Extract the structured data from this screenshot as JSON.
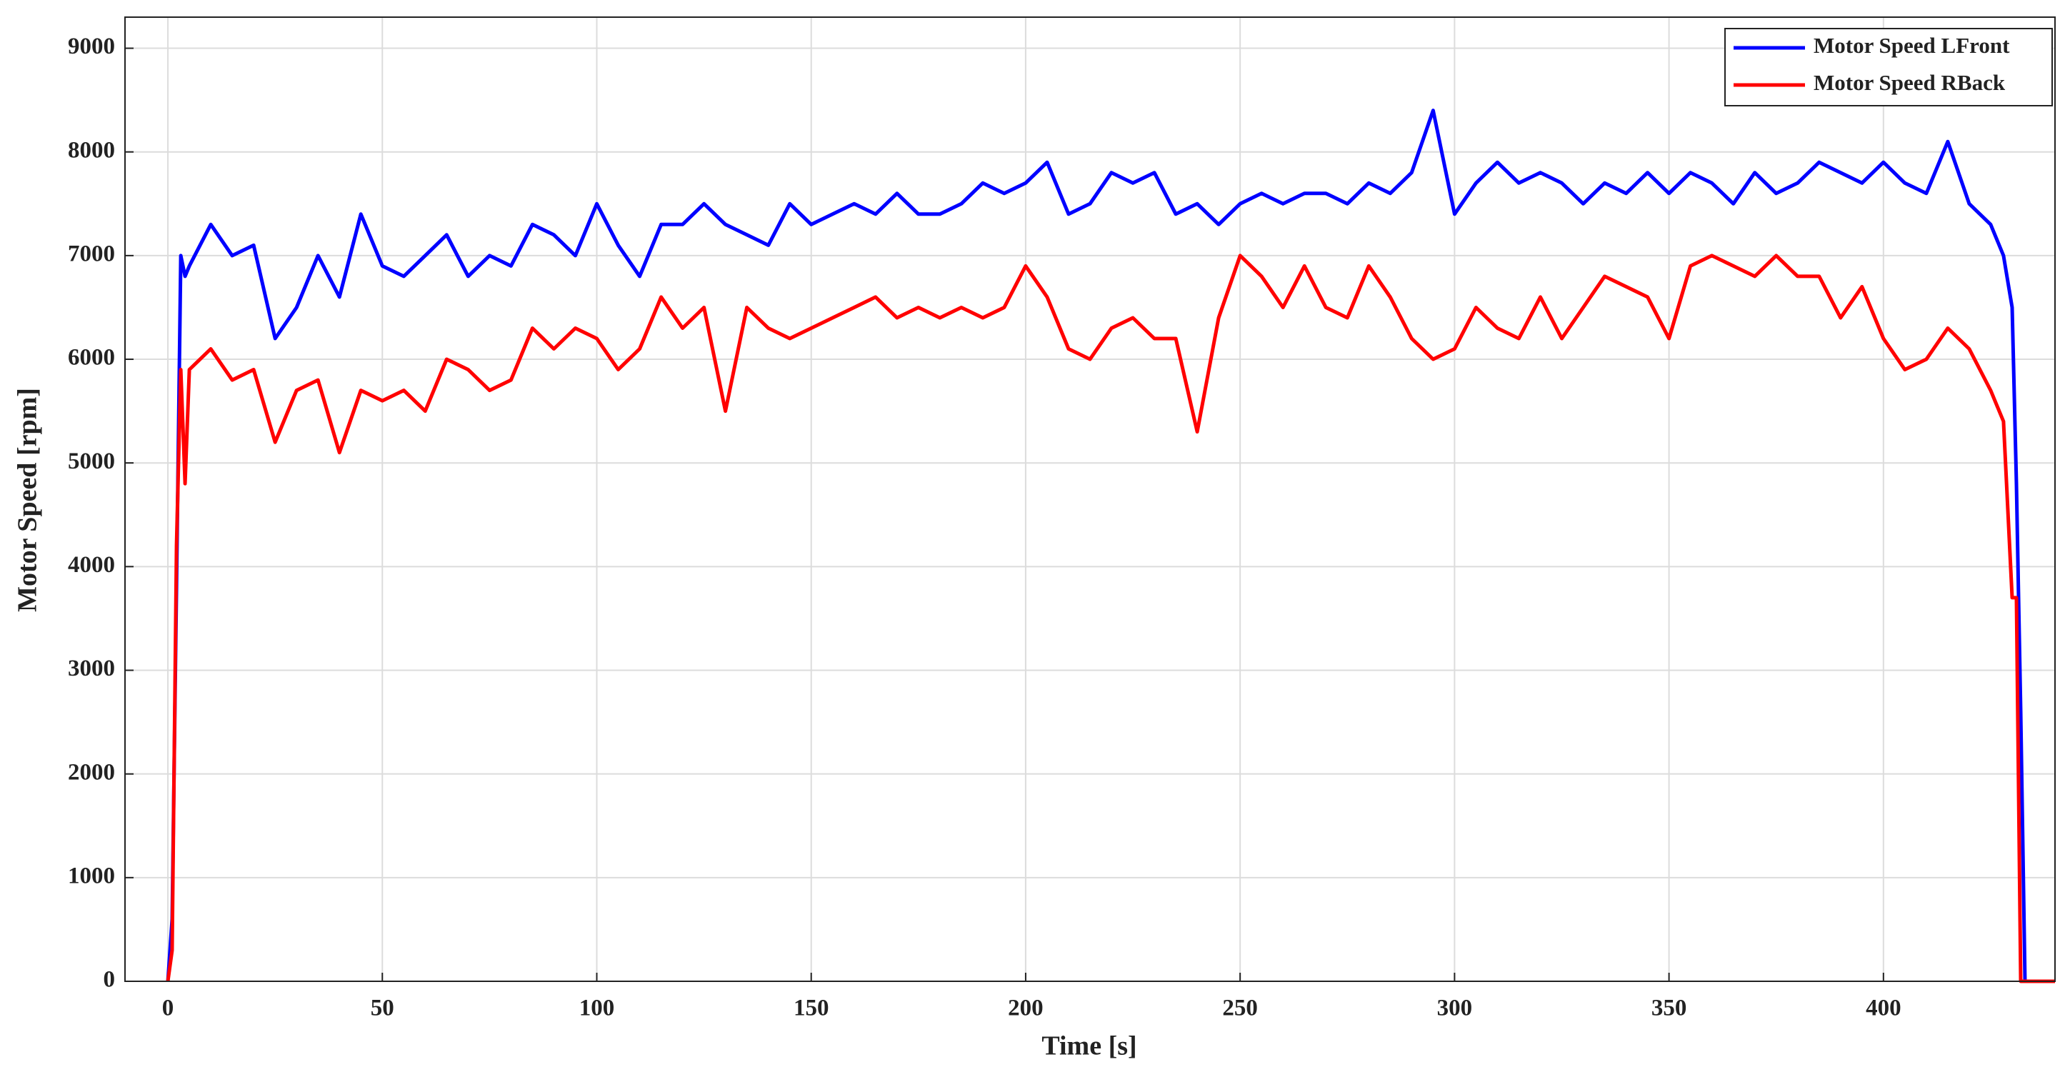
{
  "chart_data": {
    "type": "line",
    "xlabel": "Time [s]",
    "ylabel": "Motor Speed [rpm]",
    "xlim": [
      -10,
      440
    ],
    "ylim": [
      0,
      9300
    ],
    "xticks": [
      0,
      50,
      100,
      150,
      200,
      250,
      300,
      350,
      400
    ],
    "yticks": [
      0,
      1000,
      2000,
      3000,
      4000,
      5000,
      6000,
      7000,
      8000,
      9000
    ],
    "grid": true,
    "legend": "upper right",
    "x": [
      0,
      1,
      2,
      3,
      4,
      5,
      10,
      15,
      20,
      25,
      30,
      35,
      40,
      45,
      50,
      55,
      60,
      65,
      70,
      75,
      80,
      85,
      90,
      95,
      100,
      105,
      110,
      115,
      120,
      125,
      130,
      135,
      140,
      145,
      150,
      155,
      160,
      165,
      170,
      175,
      180,
      185,
      190,
      195,
      200,
      205,
      210,
      215,
      220,
      225,
      230,
      235,
      240,
      245,
      250,
      255,
      260,
      265,
      270,
      275,
      280,
      285,
      290,
      295,
      300,
      305,
      310,
      315,
      320,
      325,
      330,
      335,
      340,
      345,
      350,
      355,
      360,
      365,
      370,
      375,
      380,
      385,
      390,
      395,
      400,
      405,
      410,
      415,
      420,
      425,
      428,
      430,
      431,
      432,
      433,
      440
    ],
    "series": [
      {
        "name": "Motor Speed LFront",
        "color": "#0000ff",
        "values": [
          0,
          600,
          3800,
          7000,
          6800,
          6900,
          7300,
          7000,
          7100,
          6200,
          6500,
          7000,
          6600,
          7400,
          6900,
          6800,
          7000,
          7200,
          6800,
          7000,
          6900,
          7300,
          7200,
          7000,
          7500,
          7100,
          6800,
          7300,
          7300,
          7500,
          7300,
          7200,
          7100,
          7500,
          7300,
          7400,
          7500,
          7400,
          7600,
          7400,
          7400,
          7500,
          7700,
          7600,
          7700,
          7900,
          7400,
          7500,
          7800,
          7700,
          7800,
          7400,
          7500,
          7300,
          7500,
          7600,
          7500,
          7600,
          7600,
          7500,
          7700,
          7600,
          7800,
          8400,
          7400,
          7700,
          7900,
          7700,
          7800,
          7700,
          7500,
          7700,
          7600,
          7800,
          7600,
          7800,
          7700,
          7500,
          7800,
          7600,
          7700,
          7900,
          7800,
          7700,
          7900,
          7700,
          7600,
          8100,
          7500,
          7300,
          7000,
          6500,
          4800,
          2600,
          0,
          0
        ]
      },
      {
        "name": "Motor Speed RBack",
        "color": "#ff0000",
        "values": [
          0,
          300,
          4200,
          5900,
          4800,
          5900,
          6100,
          5800,
          5900,
          5200,
          5700,
          5800,
          5100,
          5700,
          5600,
          5700,
          5500,
          6000,
          5900,
          5700,
          5800,
          6300,
          6100,
          6300,
          6200,
          5900,
          6100,
          6600,
          6300,
          6500,
          5500,
          6500,
          6300,
          6200,
          6300,
          6400,
          6500,
          6600,
          6400,
          6500,
          6400,
          6500,
          6400,
          6500,
          6900,
          6600,
          6100,
          6000,
          6300,
          6400,
          6200,
          6200,
          5300,
          6400,
          7000,
          6800,
          6500,
          6900,
          6500,
          6400,
          6900,
          6600,
          6200,
          6000,
          6100,
          6500,
          6300,
          6200,
          6600,
          6200,
          6500,
          6800,
          6700,
          6600,
          6200,
          6900,
          7000,
          6900,
          6800,
          7000,
          6800,
          6800,
          6400,
          6700,
          6200,
          5900,
          6000,
          6300,
          6100,
          5700,
          5400,
          3700,
          3700,
          0,
          0,
          0
        ]
      }
    ]
  }
}
